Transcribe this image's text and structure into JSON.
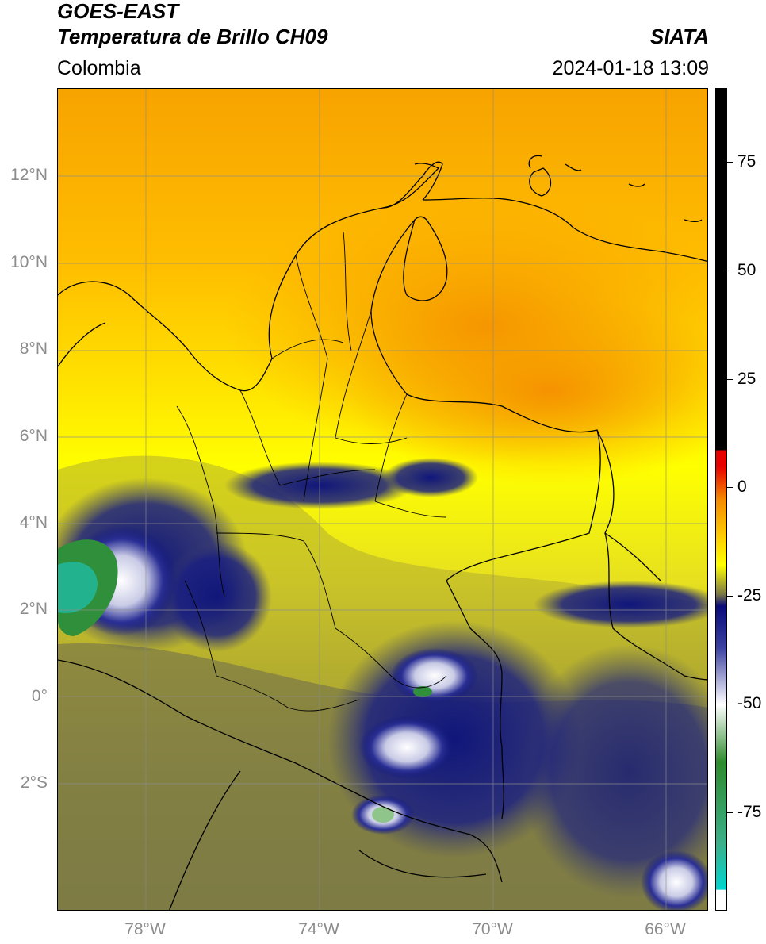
{
  "header": {
    "title_line1": "GOES-EAST",
    "title_line2": "Temperatura de Brillo CH09",
    "brand": "SIATA",
    "region": "Colombia",
    "timestamp": "2024-01-18 13:09"
  },
  "map": {
    "lat_labels": [
      "12°N",
      "10°N",
      "8°N",
      "6°N",
      "4°N",
      "2°N",
      "0°",
      "2°S"
    ],
    "lon_labels": [
      "78°W",
      "74°W",
      "70°W",
      "66°W"
    ],
    "gridline_color": "#8c8c8c",
    "colors": {
      "warm_orange": "#f7a300",
      "yellow": "#ffff00",
      "olive": "#b7b12c",
      "grey_olive": "#6f6d4a",
      "navy": "#10167a",
      "white_cloud": "#f1f1f4",
      "green_cold": "#2f8f3a",
      "teal_cold": "#22b38e"
    }
  },
  "colorbar": {
    "tick_labels": [
      "75",
      "50",
      "25",
      "0",
      "-25",
      "-50",
      "-75"
    ],
    "stops": [
      {
        "color": "#000000",
        "label": "top"
      },
      {
        "color": "#e80000",
        "label": "8"
      },
      {
        "color": "#f58a00",
        "label": "0"
      },
      {
        "color": "#ffd400",
        "label": "-10"
      },
      {
        "color": "#ffff00",
        "label": "-15"
      },
      {
        "color": "#7d7a45",
        "label": "-23"
      },
      {
        "color": "#0a0a7a",
        "label": "-28"
      },
      {
        "color": "#ffffff",
        "label": "-50"
      },
      {
        "color": "#2e8b2e",
        "label": "-62"
      },
      {
        "color": "#00d6d0",
        "label": "-85"
      },
      {
        "color": "#ffffff",
        "label": "bottom"
      }
    ]
  }
}
